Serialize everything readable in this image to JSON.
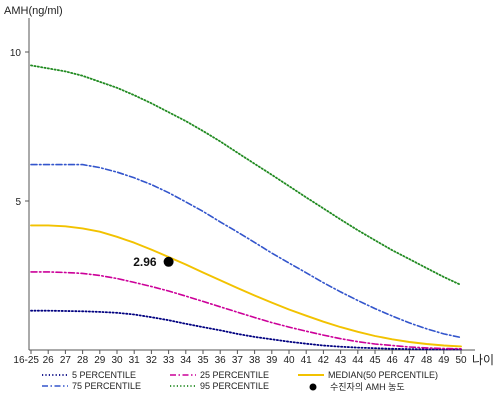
{
  "chart_data": {
    "type": "line",
    "ylabel": "AMH(ng/ml)",
    "xlabel": "나이",
    "categories": [
      "16-25",
      "26",
      "27",
      "28",
      "29",
      "30",
      "31",
      "32",
      "33",
      "34",
      "35",
      "36",
      "37",
      "38",
      "39",
      "40",
      "41",
      "42",
      "43",
      "44",
      "45",
      "46",
      "47",
      "48",
      "49",
      "50"
    ],
    "yticks": [
      5,
      10
    ],
    "ylim": [
      0,
      11
    ],
    "series": [
      {
        "name": "5 PERCENTILE",
        "color": "#000080",
        "style": "dotted",
        "values": [
          1.32,
          1.32,
          1.31,
          1.3,
          1.28,
          1.25,
          1.19,
          1.1,
          1.0,
          0.88,
          0.77,
          0.66,
          0.54,
          0.44,
          0.36,
          0.28,
          0.21,
          0.15,
          0.11,
          0.08,
          0.06,
          0.04,
          0.03,
          0.02,
          0.02,
          0.02
        ]
      },
      {
        "name": "25 PERCENTILE",
        "color": "#cc0099",
        "style": "dashdot",
        "values": [
          2.62,
          2.62,
          2.6,
          2.57,
          2.5,
          2.4,
          2.27,
          2.13,
          1.98,
          1.81,
          1.63,
          1.45,
          1.27,
          1.09,
          0.92,
          0.77,
          0.63,
          0.5,
          0.38,
          0.28,
          0.2,
          0.15,
          0.1,
          0.07,
          0.05,
          0.04
        ]
      },
      {
        "name": "MEDIAN(50 PERCENTILE)",
        "color": "#f2c200",
        "style": "solid",
        "values": [
          4.18,
          4.18,
          4.15,
          4.08,
          3.97,
          3.8,
          3.6,
          3.37,
          3.12,
          2.87,
          2.6,
          2.34,
          2.08,
          1.83,
          1.59,
          1.36,
          1.15,
          0.95,
          0.77,
          0.61,
          0.47,
          0.36,
          0.27,
          0.2,
          0.15,
          0.12
        ]
      },
      {
        "name": "75 PERCENTILE",
        "color": "#3355cc",
        "style": "dashdot",
        "values": [
          6.22,
          6.22,
          6.22,
          6.22,
          6.12,
          5.97,
          5.78,
          5.55,
          5.28,
          4.97,
          4.65,
          4.3,
          3.96,
          3.61,
          3.25,
          2.92,
          2.59,
          2.26,
          1.95,
          1.66,
          1.39,
          1.14,
          0.91,
          0.71,
          0.54,
          0.42
        ]
      },
      {
        "name": "95 PERCENTILE",
        "color": "#228b22",
        "style": "dotted",
        "values": [
          9.55,
          9.45,
          9.35,
          9.2,
          9.0,
          8.8,
          8.55,
          8.28,
          7.98,
          7.68,
          7.35,
          7.0,
          6.62,
          6.25,
          5.88,
          5.5,
          5.12,
          4.75,
          4.38,
          4.02,
          3.68,
          3.35,
          3.05,
          2.75,
          2.45,
          2.18
        ]
      }
    ],
    "point": {
      "x": "33",
      "y": 2.96,
      "label": "2.96",
      "legend": "수진자의 AMH 농도"
    }
  }
}
